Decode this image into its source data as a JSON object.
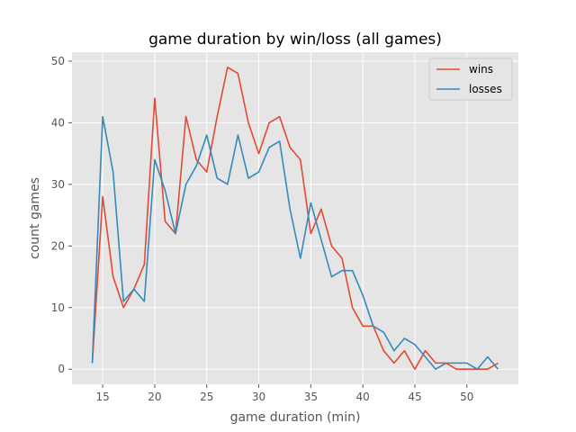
{
  "chart_data": {
    "type": "line",
    "title": "game duration by win/loss (all games)",
    "xlabel": "game duration (min)",
    "ylabel": "count games",
    "xlim": [
      12.05,
      54.95
    ],
    "ylim": [
      -2.45,
      51.45
    ],
    "xticks": [
      15,
      20,
      25,
      30,
      35,
      40,
      45,
      50
    ],
    "yticks": [
      0,
      10,
      20,
      30,
      40,
      50
    ],
    "grid": true,
    "legend": {
      "placement": "top-right"
    },
    "x": [
      14,
      15,
      16,
      17,
      18,
      19,
      20,
      21,
      22,
      23,
      24,
      25,
      26,
      27,
      28,
      29,
      30,
      31,
      32,
      33,
      34,
      35,
      36,
      37,
      38,
      39,
      40,
      41,
      42,
      43,
      44,
      45,
      46,
      47,
      48,
      49,
      50,
      51,
      52,
      53
    ],
    "series": [
      {
        "name": "wins",
        "color": "#E24A33",
        "values": [
          1,
          28,
          15,
          10,
          13,
          17,
          44,
          24,
          22,
          41,
          34,
          32,
          41,
          49,
          48,
          40,
          35,
          40,
          41,
          36,
          34,
          22,
          26,
          20,
          18,
          10,
          7,
          7,
          3,
          1,
          3,
          0,
          3,
          1,
          1,
          0,
          0,
          0,
          0,
          1
        ]
      },
      {
        "name": "losses",
        "color": "#348ABD",
        "values": [
          1,
          41,
          32,
          11,
          13,
          11,
          34,
          29,
          22,
          30,
          33,
          38,
          31,
          30,
          38,
          31,
          32,
          36,
          37,
          26,
          18,
          27,
          21,
          15,
          16,
          16,
          12,
          7,
          6,
          3,
          5,
          4,
          2,
          0,
          1,
          1,
          1,
          0,
          2,
          0
        ]
      }
    ]
  }
}
